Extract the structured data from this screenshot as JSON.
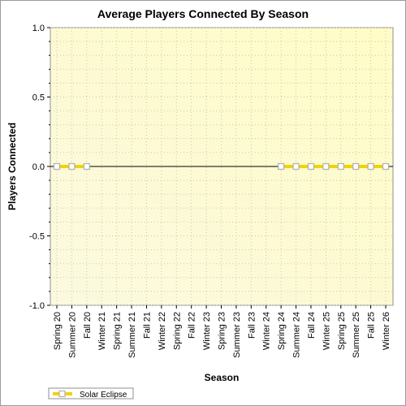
{
  "chart_data": {
    "type": "line",
    "title": "Average Players Connected By Season",
    "xlabel": "Season",
    "ylabel": "Players Connected",
    "ylim": [
      -1.0,
      1.0
    ],
    "yticks": [
      "1.0",
      "0.5",
      "0.0",
      "-0.5",
      "-1.0"
    ],
    "ytick_values": [
      1.0,
      0.5,
      0.0,
      -0.5,
      -1.0
    ],
    "categories": [
      "Spring 20",
      "Summer 20",
      "Fall 20",
      "Winter 21",
      "Spring 21",
      "Summer 21",
      "Fall 21",
      "Winter 22",
      "Spring 22",
      "Fall 22",
      "Winter 23",
      "Spring 23",
      "Summer 23",
      "Fall 23",
      "Winter 24",
      "Spring 24",
      "Summer 24",
      "Fall 24",
      "Winter 25",
      "Spring 25",
      "Summer 25",
      "Fall 25",
      "Winter 26"
    ],
    "series": [
      {
        "name": "Solar Eclipse",
        "color": "#f2d200",
        "values": [
          0,
          0,
          0,
          null,
          null,
          null,
          null,
          null,
          null,
          null,
          null,
          null,
          null,
          null,
          null,
          0,
          0,
          0,
          0,
          0,
          0,
          0,
          0
        ]
      }
    ],
    "grid": true,
    "legend_position": "bottom-left"
  }
}
